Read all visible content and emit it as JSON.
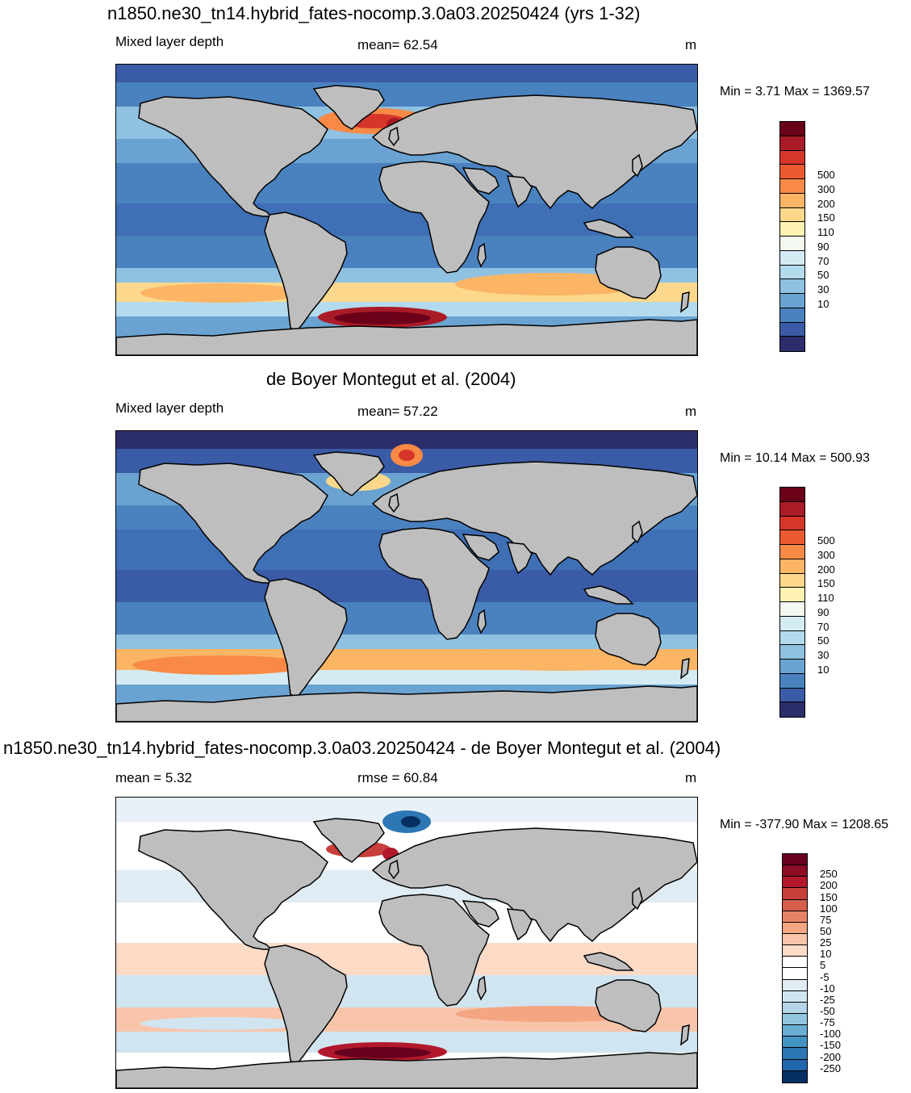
{
  "panels": [
    {
      "title": "n1850.ne30_tn14.hybrid_fates-nocomp.3.0a03.20250424 (yrs 1-32)",
      "left_label": "Mixed layer depth",
      "center_label": "mean=  62.54",
      "units": "m",
      "minmax": "Min =   3.71 Max = 1369.57",
      "colorbar": {
        "labels": [
          "500",
          "300",
          "200",
          "150",
          "110",
          "90",
          "70",
          "50",
          "30",
          "10"
        ],
        "colors": [
          "#6b0019",
          "#a91b26",
          "#d6362a",
          "#ec5a30",
          "#f88a45",
          "#fbb565",
          "#fdd88c",
          "#fef3b3",
          "#f3f9f0",
          "#d4ebf3",
          "#b4dbed",
          "#8fc1e1",
          "#6aa3d1",
          "#4a81bf",
          "#3a5ba6",
          "#2b2e6a"
        ]
      }
    },
    {
      "title": "de Boyer Montegut et al. (2004)",
      "left_label": "Mixed layer depth",
      "center_label": "mean=  57.22",
      "units": "m",
      "minmax": "Min =  10.14 Max = 500.93",
      "colorbar": {
        "labels": [
          "500",
          "300",
          "200",
          "150",
          "110",
          "90",
          "70",
          "50",
          "30",
          "10"
        ],
        "colors": [
          "#6b0019",
          "#a91b26",
          "#d6362a",
          "#ec5a30",
          "#f88a45",
          "#fbb565",
          "#fdd88c",
          "#fef3b3",
          "#f3f9f0",
          "#d4ebf3",
          "#b4dbed",
          "#8fc1e1",
          "#6aa3d1",
          "#4a81bf",
          "#3a5ba6",
          "#2b2e6a"
        ]
      }
    },
    {
      "title": "n1850.ne30_tn14.hybrid_fates-nocomp.3.0a03.20250424 - de Boyer Montegut et al. (2004)",
      "left_label": "mean =   5.32",
      "center_label": "rmse =  60.84",
      "units": "m",
      "minmax": "Min = -377.90 Max = 1208.65",
      "colorbar": {
        "labels": [
          "250",
          "200",
          "150",
          "100",
          "75",
          "50",
          "25",
          "10",
          "5",
          "-5",
          "-10",
          "-25",
          "-50",
          "-75",
          "-100",
          "-150",
          "-200",
          "-250"
        ],
        "colors": [
          "#67001f",
          "#8d0b25",
          "#b2182b",
          "#c83e3a",
          "#d6604d",
          "#e58368",
          "#f4a582",
          "#f8c5ab",
          "#fddbc7",
          "#ffffff",
          "#ffffff",
          "#e0ecf4",
          "#d1e5f0",
          "#b4d5e8",
          "#92c5de",
          "#6aaed3",
          "#4393c3",
          "#2c77b4",
          "#2166ac",
          "#053061"
        ]
      }
    }
  ],
  "land_color": "#bebebe"
}
